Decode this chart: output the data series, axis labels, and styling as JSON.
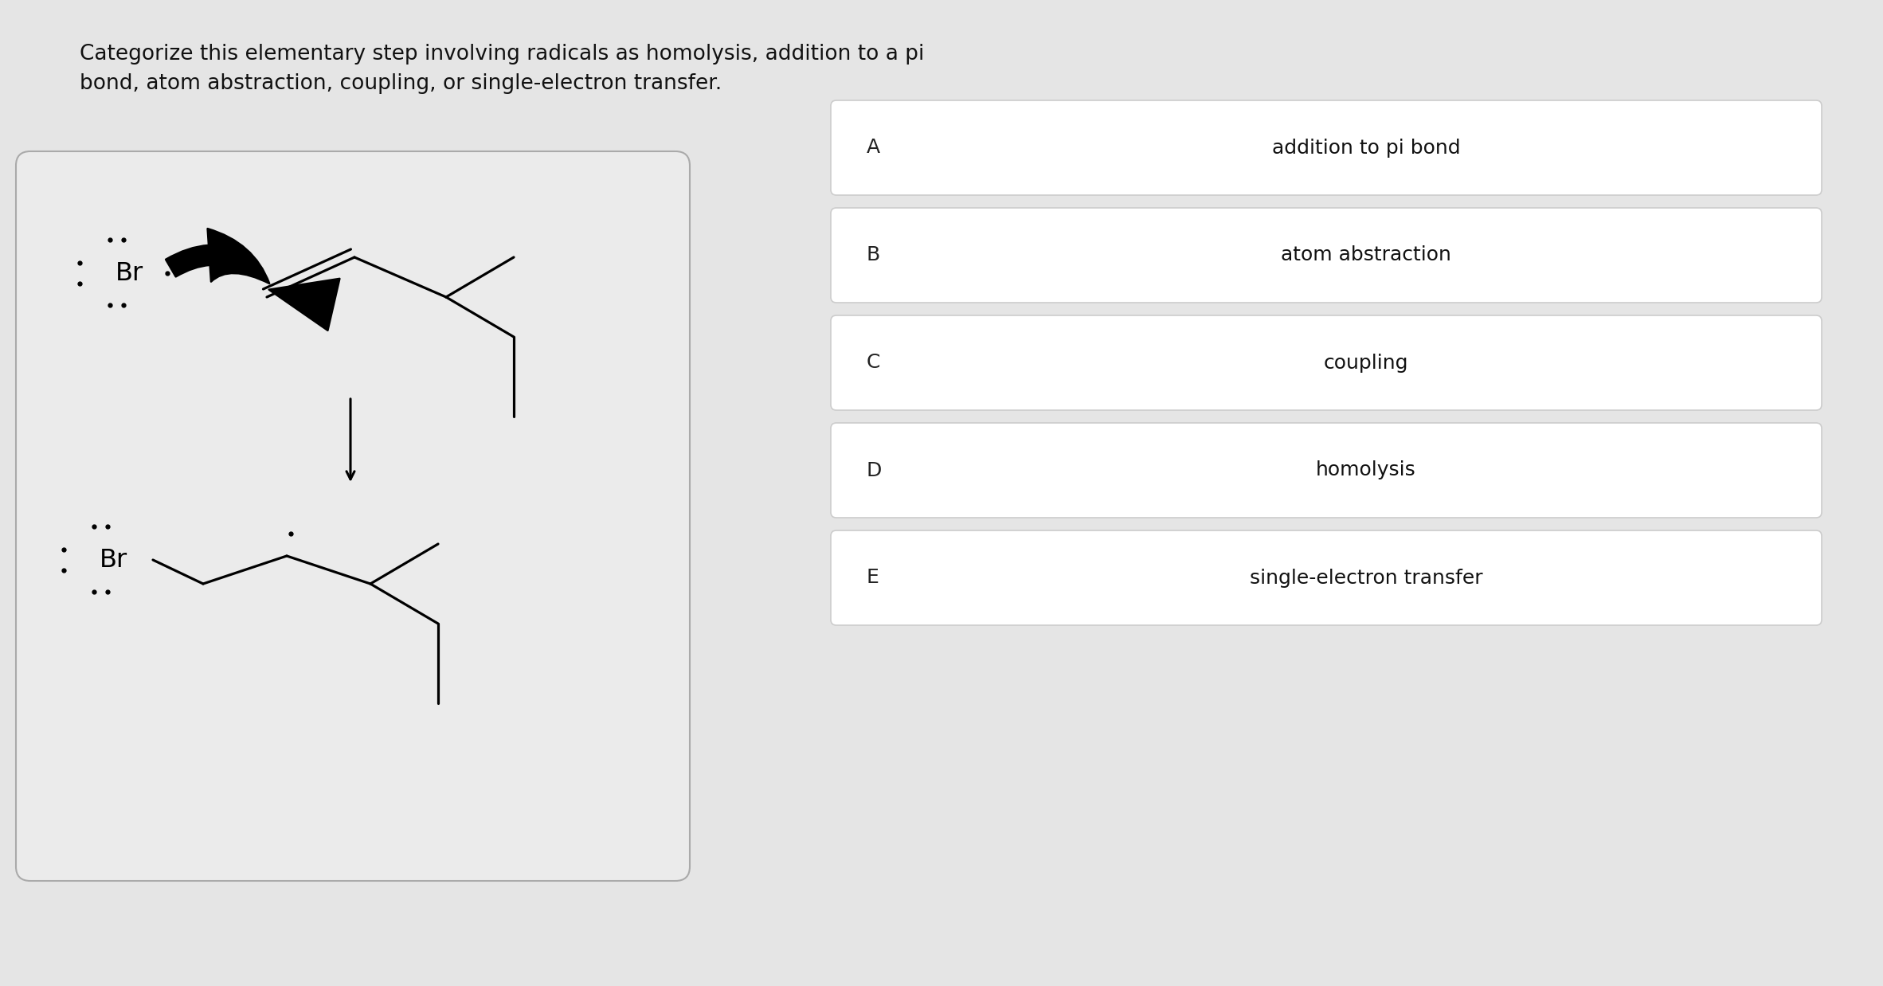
{
  "bg_color": "#e5e5e5",
  "box_bg": "#ebebeb",
  "box_border": "#aaaaaa",
  "opt_bg": "#ffffff",
  "opt_border": "#cccccc",
  "title_text": "Categorize this elementary step involving radicals as homolysis, addition to a pi\nbond, atom abstraction, coupling, or single-electron transfer.",
  "title_fontsize": 19,
  "title_color": "#111111",
  "options": [
    {
      "label": "A",
      "text": "addition to pi bond"
    },
    {
      "label": "B",
      "text": "atom abstraction"
    },
    {
      "label": "C",
      "text": "coupling"
    },
    {
      "label": "D",
      "text": "homolysis"
    },
    {
      "label": "E",
      "text": "single-electron transfer"
    }
  ],
  "option_fontsize": 18,
  "label_fontsize": 18,
  "figw": 23.64,
  "figh": 12.38
}
